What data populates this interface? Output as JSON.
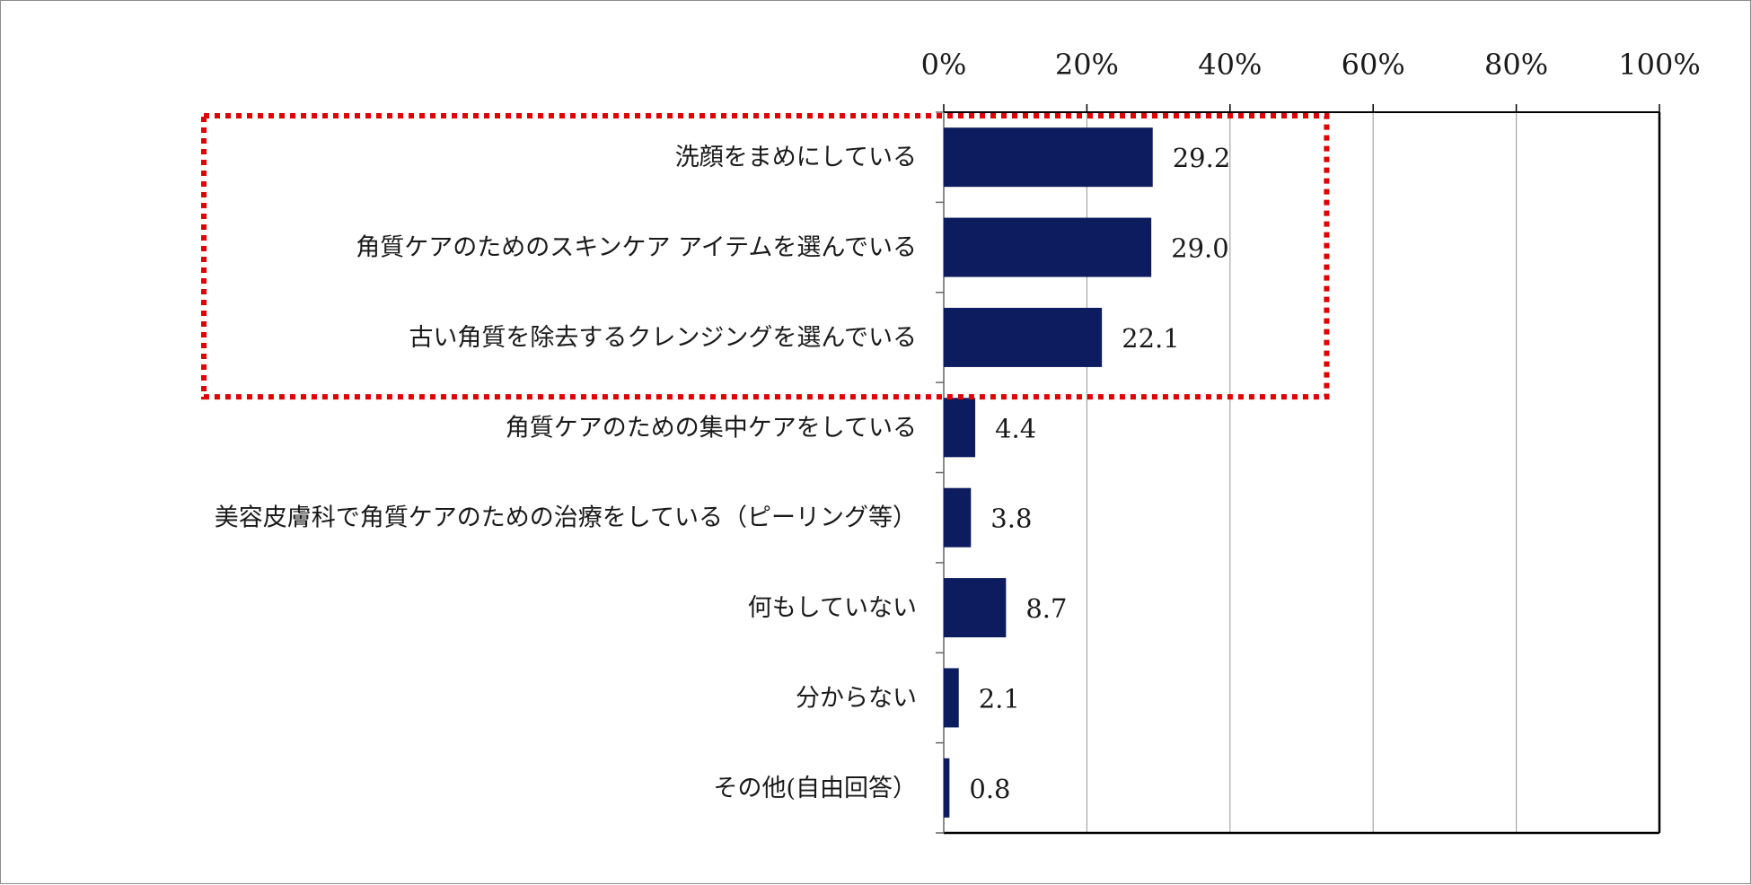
{
  "chart_data": {
    "type": "bar",
    "orientation": "horizontal",
    "title": "",
    "xlabel": "",
    "ylabel": "",
    "xlim": [
      0,
      100
    ],
    "x_ticks": [
      0,
      20,
      40,
      60,
      80,
      100
    ],
    "x_tick_labels": [
      "0%",
      "20%",
      "40%",
      "60%",
      "80%",
      "100%"
    ],
    "x_axis_position": "top",
    "grid": true,
    "categories": [
      "洗顔をまめにしている",
      "角質ケアのためのスキンケア アイテムを選んでいる",
      "古い角質を除去するクレンジングを選んでいる",
      "角質ケアのための集中ケアをしている",
      "美容皮膚科で角質ケアのための治療をしている（ピーリング等）",
      "何もしていない",
      "分からない",
      "その他(自由回答）"
    ],
    "values": [
      29.2,
      29.0,
      22.1,
      4.4,
      3.8,
      8.7,
      2.1,
      0.8
    ],
    "value_labels": [
      "29.2",
      "29.0",
      "22.1",
      "4.4",
      "3.8",
      "8.7",
      "2.1",
      "0.8"
    ],
    "highlight": {
      "style": "dotted red box",
      "first_category_index": 0,
      "last_category_index": 2,
      "x_extent_value": 53.5
    },
    "colors": {
      "bar": "#0d1c5e",
      "highlight": "#e00000",
      "grid": "#a6a6a6",
      "axis": "#000000",
      "text": "#1a1a1a"
    }
  }
}
